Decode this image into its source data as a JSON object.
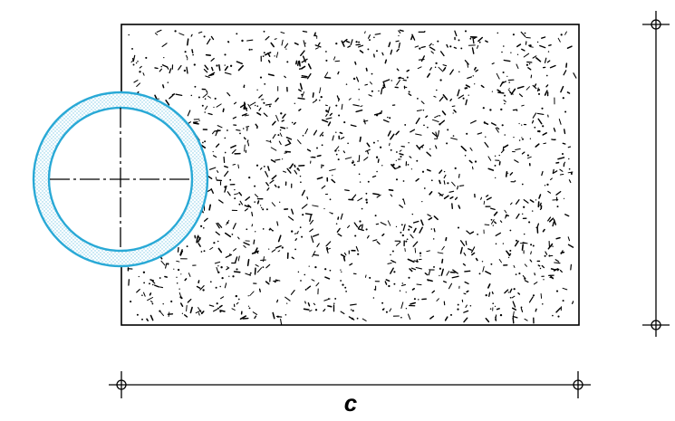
{
  "dimension_labels": {
    "width": "c"
  },
  "colors": {
    "pipe": "#29a9d6",
    "pipe_wall_dots": "#8fd3ec",
    "line": "#000000",
    "background": "#ffffff"
  }
}
